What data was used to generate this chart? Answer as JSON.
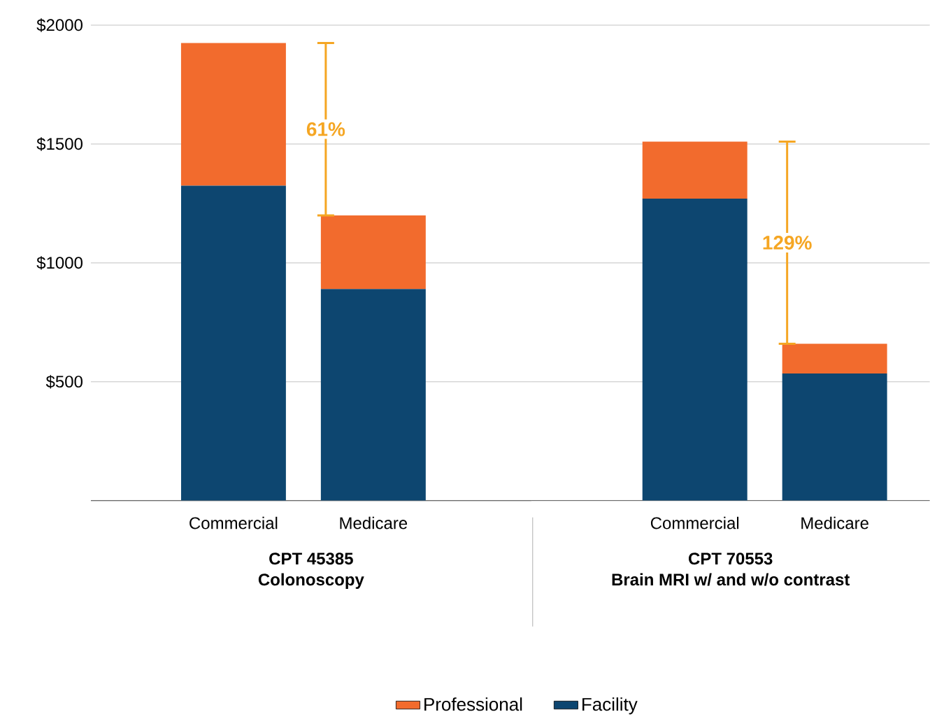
{
  "chart_data": [
    {
      "type": "bar",
      "stacked": true,
      "categories": [
        "Commercial",
        "Medicare"
      ],
      "xlabel": "CPT 45385\nColonoscopy",
      "series": [
        {
          "name": "Facility",
          "color": "#0d4670",
          "values": [
            1325,
            890
          ]
        },
        {
          "name": "Professional",
          "color": "#f26b2d",
          "values": [
            600,
            310
          ]
        }
      ],
      "ylim": [
        0,
        2000
      ],
      "yticks": [
        {
          "value": 500,
          "label": "$500"
        },
        {
          "value": 1000,
          "label": "$1000"
        },
        {
          "value": 1500,
          "label": "$1500"
        },
        {
          "value": 2000,
          "label": "$2000"
        }
      ],
      "grid": "y",
      "legend": "bottom",
      "annotations": [
        "61%"
      ]
    },
    {
      "type": "bar",
      "stacked": true,
      "categories": [
        "Commercial",
        "Medicare"
      ],
      "xlabel": "CPT 70553\nBrain MRI w/ and w/o contrast",
      "series": [
        {
          "color": "#0d4670",
          "values": [
            1270,
            535
          ]
        },
        {
          "color": "#f26b2d",
          "values": [
            240,
            125
          ]
        }
      ],
      "ylim": [
        0,
        2000
      ],
      "yticks": [
        500,
        1000,
        1500,
        2000
      ],
      "grid": "y",
      "tick_labels": "x",
      "annotations": [
        "129%"
      ]
    }
  ]
}
